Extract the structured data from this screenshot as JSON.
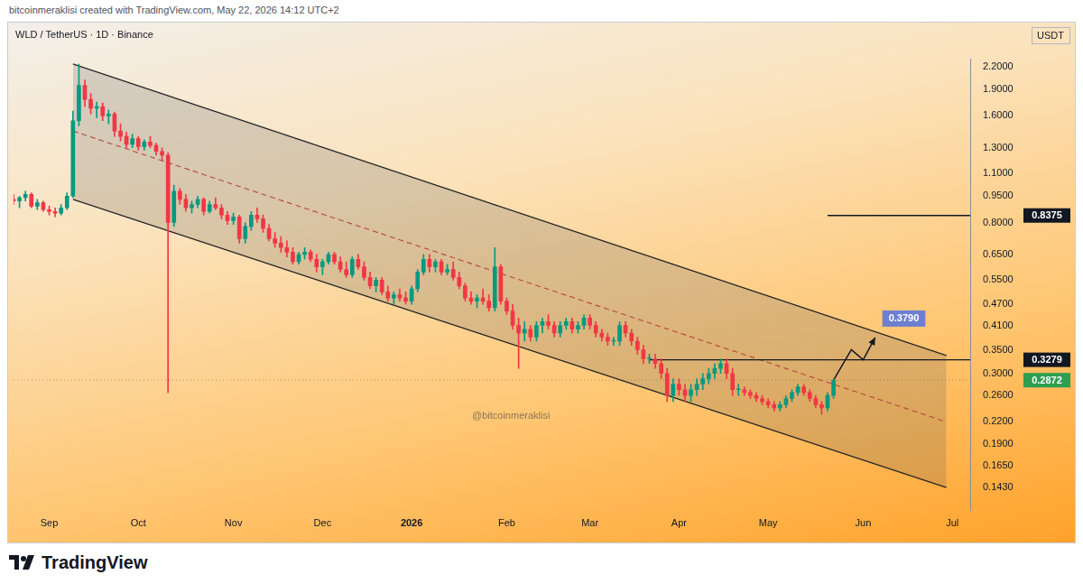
{
  "chart_data": {
    "type": "candlestick",
    "title": "WLD / TetherUS · 1D · Binance",
    "currency": "USDT",
    "credit": "bitcoinmeraklisi created with TradingView.com, May 22, 2026 14:12 UTC+2",
    "brand": "TradingView",
    "watermark": "@bitcoinmeraklisi",
    "log": "y",
    "grid": false,
    "ylim": [
      0.123,
      2.32
    ],
    "yticks": [
      {
        "value": 0.143,
        "label": "0.1430"
      },
      {
        "value": 0.165,
        "label": "0.1650"
      },
      {
        "value": 0.19,
        "label": "0.1900"
      },
      {
        "value": 0.22,
        "label": "0.2200"
      },
      {
        "value": 0.26,
        "label": "0.2600"
      },
      {
        "value": 0.3,
        "label": "0.3000"
      },
      {
        "value": 0.35,
        "label": "0.3500"
      },
      {
        "value": 0.41,
        "label": "0.4100"
      },
      {
        "value": 0.47,
        "label": "0.4700"
      },
      {
        "value": 0.55,
        "label": "0.5500"
      },
      {
        "value": 0.65,
        "label": "0.6500"
      },
      {
        "value": 0.8,
        "label": "0.8000"
      },
      {
        "value": 0.95,
        "label": "0.9500"
      },
      {
        "value": 1.1,
        "label": "1.1000"
      },
      {
        "value": 1.3,
        "label": "1.3000"
      },
      {
        "value": 1.6,
        "label": "1.6000"
      },
      {
        "value": 1.9,
        "label": "1.9000"
      },
      {
        "value": 2.2,
        "label": "2.2000"
      }
    ],
    "categories": [
      null,
      null,
      null,
      null,
      null,
      null,
      "Sep",
      null,
      null,
      null,
      null,
      null,
      null,
      null,
      null,
      null,
      null,
      null,
      null,
      null,
      null,
      "Oct",
      null,
      null,
      null,
      null,
      null,
      null,
      null,
      null,
      null,
      null,
      null,
      null,
      null,
      null,
      null,
      "Nov",
      null,
      null,
      null,
      null,
      null,
      null,
      null,
      null,
      null,
      null,
      null,
      null,
      null,
      null,
      "Dec",
      null,
      null,
      null,
      null,
      null,
      null,
      null,
      null,
      null,
      null,
      null,
      null,
      null,
      null,
      "2026",
      null,
      null,
      null,
      null,
      null,
      null,
      null,
      null,
      null,
      null,
      null,
      null,
      null,
      null,
      null,
      "Feb",
      null,
      null,
      null,
      null,
      null,
      null,
      null,
      null,
      null,
      null,
      null,
      null,
      null,
      "Mar",
      null,
      null,
      null,
      null,
      null,
      null,
      null,
      null,
      null,
      null,
      null,
      null,
      null,
      null,
      "Apr",
      null,
      null,
      null,
      null,
      null,
      null,
      null,
      null,
      null,
      null,
      null,
      null,
      null,
      null,
      "May",
      null,
      null,
      null,
      null,
      null,
      null,
      null,
      null,
      null,
      null,
      null,
      null,
      null,
      null,
      null,
      "Jun",
      null,
      null,
      null,
      null,
      null,
      null,
      null,
      null,
      null,
      null,
      null,
      null,
      null,
      null,
      "Jul",
      null,
      null,
      null
    ],
    "open": [
      0.93,
      0.92,
      0.94,
      0.96,
      0.89,
      0.91,
      0.87,
      0.86,
      0.85,
      0.88,
      0.95,
      1.55,
      1.95,
      1.78,
      1.68,
      1.7,
      1.6,
      1.62,
      1.45,
      1.4,
      1.33,
      1.38,
      1.31,
      1.35,
      1.32,
      1.27,
      1.24,
      0.8,
      0.98,
      0.93,
      0.88,
      0.9,
      0.93,
      0.86,
      0.9,
      0.88,
      0.84,
      0.81,
      0.83,
      0.72,
      0.78,
      0.84,
      0.82,
      0.77,
      0.72,
      0.7,
      0.68,
      0.66,
      0.62,
      0.65,
      0.66,
      0.63,
      0.6,
      0.62,
      0.65,
      0.62,
      0.59,
      0.57,
      0.63,
      0.6,
      0.56,
      0.53,
      0.55,
      0.51,
      0.49,
      0.5,
      0.49,
      0.48,
      0.52,
      0.58,
      0.63,
      0.6,
      0.62,
      0.58,
      0.59,
      0.56,
      0.53,
      0.49,
      0.48,
      0.49,
      0.48,
      0.46,
      0.6,
      0.48,
      0.45,
      0.41,
      0.39,
      0.4,
      0.38,
      0.41,
      0.42,
      0.41,
      0.39,
      0.41,
      0.42,
      0.4,
      0.41,
      0.43,
      0.41,
      0.39,
      0.38,
      0.37,
      0.37,
      0.41,
      0.39,
      0.37,
      0.35,
      0.33,
      0.33,
      0.32,
      0.3,
      0.26,
      0.28,
      0.27,
      0.26,
      0.27,
      0.28,
      0.29,
      0.3,
      0.31,
      0.32,
      0.3,
      0.27,
      0.27,
      0.265,
      0.26,
      0.255,
      0.25,
      0.245,
      0.24,
      0.245,
      0.255,
      0.265,
      0.275,
      0.265,
      0.255,
      0.245,
      0.24,
      0.26,
      null,
      null,
      null,
      null,
      null,
      null,
      null,
      null,
      null,
      null,
      null,
      null,
      null,
      null,
      null,
      null,
      null,
      null,
      null,
      null,
      null,
      null,
      null
    ],
    "high": [
      0.96,
      0.95,
      0.98,
      0.97,
      0.93,
      0.92,
      0.89,
      0.88,
      0.9,
      0.97,
      1.65,
      2.24,
      2.02,
      1.85,
      1.75,
      1.74,
      1.66,
      1.64,
      1.52,
      1.44,
      1.42,
      1.4,
      1.37,
      1.4,
      1.34,
      1.3,
      1.26,
      1.02,
      1.0,
      0.96,
      0.92,
      0.95,
      0.94,
      0.92,
      0.94,
      0.9,
      0.86,
      0.85,
      0.84,
      0.8,
      0.86,
      0.88,
      0.84,
      0.79,
      0.75,
      0.73,
      0.71,
      0.68,
      0.66,
      0.68,
      0.67,
      0.65,
      0.63,
      0.66,
      0.66,
      0.64,
      0.62,
      0.64,
      0.65,
      0.62,
      0.58,
      0.56,
      0.56,
      0.53,
      0.51,
      0.52,
      0.51,
      0.53,
      0.59,
      0.65,
      0.65,
      0.63,
      0.63,
      0.61,
      0.62,
      0.58,
      0.54,
      0.51,
      0.5,
      0.52,
      0.5,
      0.68,
      0.61,
      0.49,
      0.47,
      0.43,
      0.42,
      0.41,
      0.42,
      0.43,
      0.44,
      0.42,
      0.42,
      0.43,
      0.43,
      0.42,
      0.44,
      0.44,
      0.42,
      0.4,
      0.39,
      0.38,
      0.42,
      0.42,
      0.4,
      0.38,
      0.36,
      0.34,
      0.34,
      0.33,
      0.31,
      0.29,
      0.29,
      0.28,
      0.28,
      0.29,
      0.3,
      0.31,
      0.32,
      0.33,
      0.33,
      0.31,
      0.28,
      0.275,
      0.27,
      0.265,
      0.26,
      0.255,
      0.25,
      0.25,
      0.26,
      0.27,
      0.28,
      0.28,
      0.27,
      0.26,
      0.25,
      0.265,
      0.29,
      null,
      null,
      null,
      null,
      null,
      null,
      null,
      null,
      null,
      null,
      null,
      null,
      null,
      null,
      null,
      null,
      null,
      null,
      null,
      null,
      null,
      null,
      null
    ],
    "low": [
      0.9,
      0.88,
      0.92,
      0.88,
      0.87,
      0.86,
      0.84,
      0.83,
      0.84,
      0.87,
      0.94,
      1.5,
      1.7,
      1.62,
      1.58,
      1.55,
      1.52,
      1.4,
      1.36,
      1.3,
      1.3,
      1.28,
      1.28,
      1.3,
      1.24,
      1.2,
      0.265,
      0.78,
      0.9,
      0.86,
      0.85,
      0.88,
      0.84,
      0.85,
      0.87,
      0.82,
      0.79,
      0.79,
      0.7,
      0.7,
      0.76,
      0.8,
      0.75,
      0.71,
      0.68,
      0.66,
      0.64,
      0.61,
      0.61,
      0.63,
      0.62,
      0.58,
      0.57,
      0.61,
      0.61,
      0.58,
      0.56,
      0.56,
      0.59,
      0.55,
      0.52,
      0.51,
      0.5,
      0.48,
      0.47,
      0.48,
      0.47,
      0.47,
      0.51,
      0.57,
      0.58,
      0.58,
      0.57,
      0.57,
      0.55,
      0.52,
      0.48,
      0.47,
      0.46,
      0.47,
      0.45,
      0.45,
      0.47,
      0.44,
      0.4,
      0.31,
      0.37,
      0.37,
      0.37,
      0.39,
      0.4,
      0.38,
      0.38,
      0.4,
      0.39,
      0.39,
      0.4,
      0.4,
      0.38,
      0.37,
      0.36,
      0.36,
      0.36,
      0.38,
      0.36,
      0.34,
      0.32,
      0.32,
      0.31,
      0.29,
      0.25,
      0.25,
      0.26,
      0.25,
      0.25,
      0.26,
      0.27,
      0.28,
      0.29,
      0.3,
      0.29,
      0.26,
      0.26,
      0.26,
      0.255,
      0.25,
      0.245,
      0.24,
      0.235,
      0.235,
      0.24,
      0.25,
      0.26,
      0.26,
      0.25,
      0.24,
      0.23,
      0.235,
      0.255,
      null,
      null,
      null,
      null,
      null,
      null,
      null,
      null,
      null,
      null,
      null,
      null,
      null,
      null,
      null,
      null,
      null,
      null,
      null,
      null,
      null,
      null,
      null
    ],
    "close": [
      0.92,
      0.94,
      0.96,
      0.89,
      0.91,
      0.87,
      0.86,
      0.85,
      0.88,
      0.95,
      1.55,
      1.95,
      1.78,
      1.68,
      1.7,
      1.6,
      1.62,
      1.45,
      1.4,
      1.33,
      1.38,
      1.31,
      1.35,
      1.32,
      1.27,
      1.24,
      0.8,
      0.98,
      0.93,
      0.88,
      0.9,
      0.93,
      0.86,
      0.9,
      0.88,
      0.84,
      0.81,
      0.83,
      0.72,
      0.78,
      0.84,
      0.82,
      0.77,
      0.72,
      0.7,
      0.68,
      0.66,
      0.62,
      0.65,
      0.66,
      0.63,
      0.6,
      0.62,
      0.65,
      0.62,
      0.59,
      0.57,
      0.63,
      0.6,
      0.56,
      0.53,
      0.55,
      0.51,
      0.49,
      0.5,
      0.49,
      0.48,
      0.52,
      0.58,
      0.63,
      0.6,
      0.62,
      0.58,
      0.59,
      0.56,
      0.53,
      0.49,
      0.48,
      0.49,
      0.48,
      0.46,
      0.6,
      0.48,
      0.45,
      0.41,
      0.39,
      0.4,
      0.38,
      0.41,
      0.42,
      0.41,
      0.39,
      0.41,
      0.42,
      0.4,
      0.41,
      0.43,
      0.41,
      0.39,
      0.38,
      0.37,
      0.37,
      0.41,
      0.39,
      0.37,
      0.35,
      0.33,
      0.33,
      0.32,
      0.3,
      0.26,
      0.28,
      0.27,
      0.26,
      0.27,
      0.28,
      0.29,
      0.3,
      0.31,
      0.32,
      0.3,
      0.27,
      0.27,
      0.265,
      0.26,
      0.255,
      0.25,
      0.245,
      0.24,
      0.245,
      0.255,
      0.265,
      0.275,
      0.265,
      0.255,
      0.245,
      0.24,
      0.26,
      0.2872,
      null,
      null,
      null,
      null,
      null,
      null,
      null,
      null,
      null,
      null,
      null,
      null,
      null,
      null,
      null,
      null,
      null,
      null,
      null,
      null,
      null,
      null,
      null
    ],
    "channel": {
      "upper": {
        "x": [
          10,
          157
        ],
        "values": [
          2.24,
          0.337
        ],
        "color": "#262626",
        "line_style": "solid"
      },
      "middle": {
        "x": [
          10,
          157
        ],
        "values": [
          1.45,
          0.219
        ],
        "color": "#b5463a",
        "line_style": "dashed"
      },
      "lower": {
        "x": [
          10,
          157
        ],
        "values": [
          0.93,
          0.143
        ],
        "color": "#262626",
        "line_style": "solid"
      }
    },
    "levels": [
      {
        "value": 0.8375,
        "label": "0.8375",
        "from": 137,
        "color": "#131722"
      },
      {
        "value": 0.3279,
        "label": "0.3279",
        "from": 107,
        "color": "#131722"
      }
    ],
    "last_price": {
      "value": 0.2872,
      "label": "0.2872",
      "color": "#2e9e4f",
      "line_style": "dotted"
    },
    "projection": {
      "x": [
        138,
        141,
        143,
        145
      ],
      "values": [
        0.2872,
        0.35,
        0.3279,
        0.379
      ],
      "color": "#131722",
      "target": {
        "value": 0.379,
        "label": "0.3790",
        "color": "#6f7fd0"
      }
    }
  }
}
